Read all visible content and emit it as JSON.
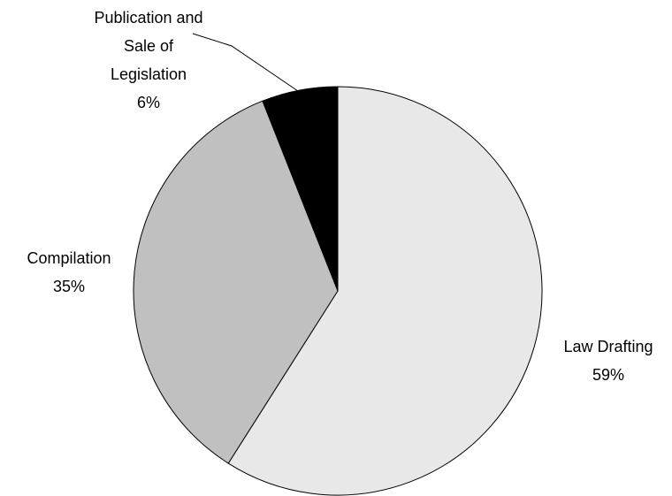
{
  "chart_data": {
    "type": "pie",
    "categories": [
      "Law Drafting",
      "Compilation",
      "Publication and\nSale of\nLegislation"
    ],
    "values": [
      59,
      35,
      6
    ],
    "value_labels": [
      "59%",
      "35%",
      "6%"
    ],
    "colors": [
      "#e8e8e8",
      "#c0c0c0",
      "#000000"
    ]
  }
}
